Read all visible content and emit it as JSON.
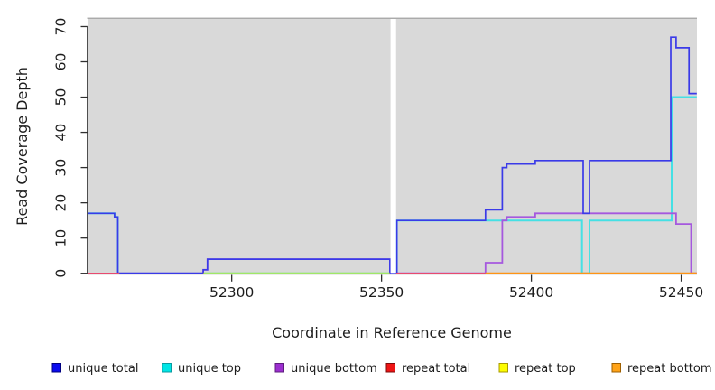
{
  "chart_data": {
    "type": "line",
    "step": true,
    "title": "",
    "xlabel": "Coordinate in Reference Genome",
    "ylabel": "Read Coverage Depth",
    "xlim": [
      52252.05,
      52455.25
    ],
    "ylim": [
      -0.46,
      72.3
    ],
    "x_ticks": [
      52300,
      52350,
      52400,
      52450
    ],
    "y_ticks": [
      0,
      10,
      20,
      30,
      40,
      50,
      60,
      70
    ],
    "grid": false,
    "legend_position": "bottom",
    "plot_bg_color": "#d9d9d9",
    "plot_top_border_color": "#9b9b9b",
    "gap_band": {
      "x_from": 52353.0,
      "x_to": 52354.85,
      "color": "#ffffff"
    },
    "series": [
      {
        "name": "unique-top",
        "label": "unique top",
        "line_color": "#45e0e4",
        "chip_color": "#00e5e5",
        "chip_border": "#0a9aa0",
        "width": 2.0,
        "opacity": 1,
        "paths": [
          [
            [
              52252.0,
              17
            ],
            [
              52260.9,
              16
            ],
            [
              52262.0,
              0
            ],
            [
              52352.8,
              0
            ],
            [
              52355.1,
              15
            ],
            [
              52416.9,
              0
            ],
            [
              52419.4,
              15
            ],
            [
              52446.8,
              50
            ],
            [
              52455.2,
              50
            ]
          ]
        ]
      },
      {
        "name": "unique-bottom",
        "label": "unique bottom",
        "line_color": "#a558de",
        "chip_color": "#9c2fd0",
        "chip_border": "#5e1c7e",
        "width": 1.8,
        "opacity": 1,
        "paths": [
          [
            [
              52262.0,
              0
            ],
            [
              52290.5,
              1
            ],
            [
              52291.9,
              4
            ],
            [
              52352.8,
              0
            ],
            [
              52384.7,
              3
            ],
            [
              52390.3,
              15
            ],
            [
              52391.8,
              16
            ],
            [
              52401.3,
              17
            ],
            [
              52448.3,
              14
            ],
            [
              52453.3,
              0
            ],
            [
              52455.2,
              0
            ]
          ]
        ]
      },
      {
        "name": "unique-total",
        "label": "unique total",
        "line_color": "#3a3ae8",
        "chip_color": "#0b0bee",
        "chip_border": "#000080",
        "width": 1.7,
        "opacity": 1,
        "paths": [
          [
            [
              52252.0,
              17
            ],
            [
              52260.9,
              16
            ],
            [
              52262.0,
              0
            ],
            [
              52290.5,
              1
            ],
            [
              52291.9,
              4
            ],
            [
              52352.8,
              0
            ],
            [
              52355.1,
              15
            ],
            [
              52384.7,
              18
            ],
            [
              52390.3,
              30
            ],
            [
              52391.8,
              31
            ],
            [
              52401.3,
              32
            ],
            [
              52417.3,
              17
            ],
            [
              52419.4,
              32
            ],
            [
              52446.5,
              67
            ],
            [
              52448.3,
              64
            ],
            [
              52452.6,
              51
            ],
            [
              52455.2,
              51
            ]
          ]
        ]
      },
      {
        "name": "repeat-total",
        "label": "repeat total",
        "line_color": "#e84a6f",
        "chip_color": "#ee1515",
        "chip_border": "#7e0b0b",
        "width": 1.5,
        "opacity": 1,
        "paths": [
          [
            [
              52252.0,
              0
            ],
            [
              52262.5,
              0
            ]
          ],
          [
            [
              52354.9,
              0
            ],
            [
              52384.7,
              0
            ]
          ]
        ]
      },
      {
        "name": "repeat-top",
        "label": "repeat top",
        "line_color": "#eded00",
        "chip_color": "#fdfd00",
        "chip_border": "#a89a00",
        "width": 1.8,
        "opacity": 0.55,
        "paths": [
          [
            [
              52290.5,
              0
            ],
            [
              52352.8,
              0
            ]
          ]
        ]
      },
      {
        "name": "repeat-bottom",
        "label": "repeat bottom",
        "line_color": "#ff9415",
        "chip_color": "#ffa318",
        "chip_border": "#9e5f00",
        "width": 1.8,
        "opacity": 1,
        "paths": [
          [
            [
              52384.7,
              0
            ],
            [
              52455.2,
              0
            ]
          ]
        ]
      }
    ],
    "legend_order": [
      "unique-total",
      "unique-top",
      "unique-bottom",
      "repeat-total",
      "repeat-top",
      "repeat-bottom"
    ]
  },
  "labels": {
    "xlabel": "Coordinate in Reference Genome",
    "ylabel": "Read Coverage Depth"
  }
}
